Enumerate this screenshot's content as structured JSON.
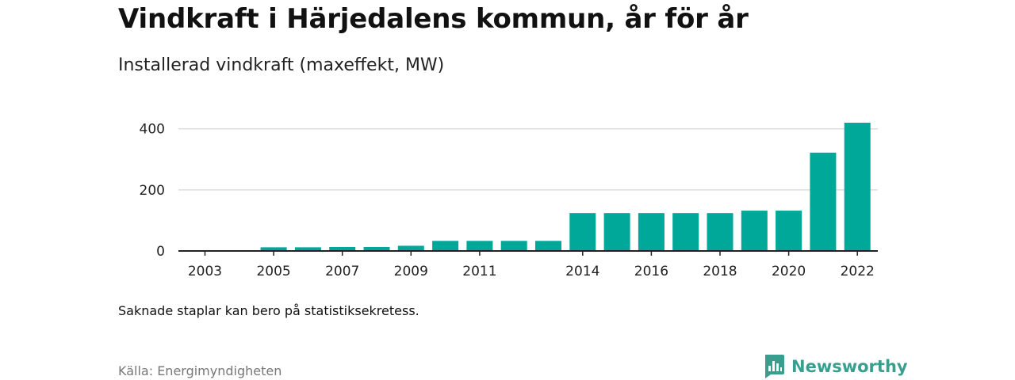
{
  "title": "Vindkraft i Härjedalens kommun, år för år",
  "subtitle": "Installerad vindkraft (maxeffekt, MW)",
  "note": "Saknade staplar kan bero på statistiksekretess.",
  "source": "Källa: Energimyndigheten",
  "brand": {
    "name": "Newsworthy",
    "icon": "newsworthy-logo-icon"
  },
  "colors": {
    "bar": "#00a89a",
    "grid": "#dddddd",
    "axis": "#222222",
    "brand": "#3a9e8f"
  },
  "chart_data": {
    "type": "bar",
    "categories": [
      "2003",
      "2004",
      "2005",
      "2006",
      "2007",
      "2008",
      "2009",
      "2010",
      "2011",
      "2012",
      "2013",
      "2014",
      "2015",
      "2016",
      "2017",
      "2018",
      "2019",
      "2020",
      "2021",
      "2022"
    ],
    "values": [
      0,
      null,
      12,
      12,
      13,
      13,
      17,
      33,
      33,
      33,
      33,
      124,
      124,
      124,
      124,
      124,
      132,
      132,
      322,
      420
    ],
    "x_tick_labels": [
      "2003",
      "2005",
      "2007",
      "2009",
      "2011",
      "2014",
      "2016",
      "2018",
      "2020",
      "2022"
    ],
    "y_ticks": [
      0,
      200,
      400
    ],
    "ylim": [
      0,
      420
    ],
    "grid": true,
    "legend": "none"
  }
}
